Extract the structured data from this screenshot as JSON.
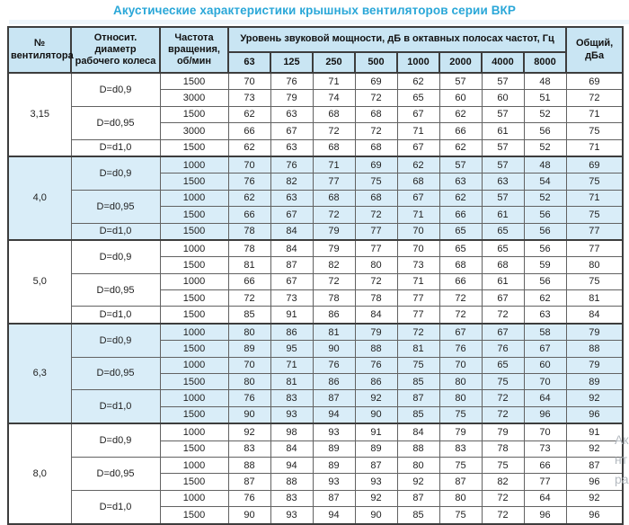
{
  "title": "Акустические характеристики крышных вентиляторов серии ВКР",
  "table": {
    "headers": {
      "fan_number": "№ вентилятора",
      "rel_diameter": "Относит. диаметр рабочего колеса",
      "rotation": "Частота вращения, об/мин",
      "spl_group": "Уровень звуковой мощности, дБ в октавных полосах частот, Гц",
      "frequencies": [
        "63",
        "125",
        "250",
        "500",
        "1000",
        "2000",
        "4000",
        "8000"
      ],
      "total": "Общий, дБа"
    },
    "groups": [
      {
        "fan": "3,15",
        "shaded": false,
        "subgroups": [
          {
            "diameter": "D=d0,9",
            "rows": [
              {
                "rpm": "1500",
                "values": [
                  70,
                  76,
                  71,
                  69,
                  62,
                  57,
                  57,
                  48
                ],
                "total": 69
              },
              {
                "rpm": "3000",
                "values": [
                  73,
                  79,
                  74,
                  72,
                  65,
                  60,
                  60,
                  51
                ],
                "total": 72
              }
            ]
          },
          {
            "diameter": "D=d0,95",
            "rows": [
              {
                "rpm": "1500",
                "values": [
                  62,
                  63,
                  68,
                  68,
                  67,
                  62,
                  57,
                  52
                ],
                "total": 71
              },
              {
                "rpm": "3000",
                "values": [
                  66,
                  67,
                  72,
                  72,
                  71,
                  66,
                  61,
                  56
                ],
                "total": 75
              }
            ]
          },
          {
            "diameter": "D=d1,0",
            "rows": [
              {
                "rpm": "1500",
                "values": [
                  62,
                  63,
                  68,
                  68,
                  67,
                  62,
                  57,
                  52
                ],
                "total": 71
              }
            ]
          }
        ]
      },
      {
        "fan": "4,0",
        "shaded": true,
        "subgroups": [
          {
            "diameter": "D=d0,9",
            "rows": [
              {
                "rpm": "1000",
                "values": [
                  70,
                  76,
                  71,
                  69,
                  62,
                  57,
                  57,
                  48
                ],
                "total": 69
              },
              {
                "rpm": "1500",
                "values": [
                  76,
                  82,
                  77,
                  75,
                  68,
                  63,
                  63,
                  54
                ],
                "total": 75
              }
            ]
          },
          {
            "diameter": "D=d0,95",
            "rows": [
              {
                "rpm": "1000",
                "values": [
                  62,
                  63,
                  68,
                  68,
                  67,
                  62,
                  57,
                  52
                ],
                "total": 71
              },
              {
                "rpm": "1500",
                "values": [
                  66,
                  67,
                  72,
                  72,
                  71,
                  66,
                  61,
                  56
                ],
                "total": 75
              }
            ]
          },
          {
            "diameter": "D=d1,0",
            "rows": [
              {
                "rpm": "1500",
                "values": [
                  78,
                  84,
                  79,
                  77,
                  70,
                  65,
                  65,
                  56
                ],
                "total": 77
              }
            ]
          }
        ]
      },
      {
        "fan": "5,0",
        "shaded": false,
        "subgroups": [
          {
            "diameter": "D=d0,9",
            "rows": [
              {
                "rpm": "1000",
                "values": [
                  78,
                  84,
                  79,
                  77,
                  70,
                  65,
                  65,
                  56
                ],
                "total": 77
              },
              {
                "rpm": "1500",
                "values": [
                  81,
                  87,
                  82,
                  80,
                  73,
                  68,
                  68,
                  59
                ],
                "total": 80
              }
            ]
          },
          {
            "diameter": "D=d0,95",
            "rows": [
              {
                "rpm": "1000",
                "values": [
                  66,
                  67,
                  72,
                  72,
                  71,
                  66,
                  61,
                  56
                ],
                "total": 75
              },
              {
                "rpm": "1500",
                "values": [
                  72,
                  73,
                  78,
                  78,
                  77,
                  72,
                  67,
                  62
                ],
                "total": 81
              }
            ]
          },
          {
            "diameter": "D=d1,0",
            "rows": [
              {
                "rpm": "1500",
                "values": [
                  85,
                  91,
                  86,
                  84,
                  77,
                  72,
                  72,
                  63
                ],
                "total": 84
              }
            ]
          }
        ]
      },
      {
        "fan": "6,3",
        "shaded": true,
        "subgroups": [
          {
            "diameter": "D=d0,9",
            "rows": [
              {
                "rpm": "1000",
                "values": [
                  80,
                  86,
                  81,
                  79,
                  72,
                  67,
                  67,
                  58
                ],
                "total": 79
              },
              {
                "rpm": "1500",
                "values": [
                  89,
                  95,
                  90,
                  88,
                  81,
                  76,
                  76,
                  67
                ],
                "total": 88
              }
            ]
          },
          {
            "diameter": "D=d0,95",
            "rows": [
              {
                "rpm": "1000",
                "values": [
                  70,
                  71,
                  76,
                  76,
                  75,
                  70,
                  65,
                  60
                ],
                "total": 79
              },
              {
                "rpm": "1500",
                "values": [
                  80,
                  81,
                  86,
                  86,
                  85,
                  80,
                  75,
                  70
                ],
                "total": 89
              }
            ]
          },
          {
            "diameter": "D=d1,0",
            "rows": [
              {
                "rpm": "1000",
                "values": [
                  76,
                  83,
                  87,
                  92,
                  87,
                  80,
                  72,
                  64
                ],
                "total": 92
              },
              {
                "rpm": "1500",
                "values": [
                  90,
                  93,
                  94,
                  90,
                  85,
                  75,
                  72,
                  96
                ],
                "total": 96
              }
            ]
          }
        ]
      },
      {
        "fan": "8,0",
        "shaded": false,
        "subgroups": [
          {
            "diameter": "D=d0,9",
            "rows": [
              {
                "rpm": "1000",
                "values": [
                  92,
                  98,
                  93,
                  91,
                  84,
                  79,
                  79,
                  70
                ],
                "total": 91
              },
              {
                "rpm": "1500",
                "values": [
                  83,
                  84,
                  89,
                  89,
                  88,
                  83,
                  78,
                  73
                ],
                "total": 92
              }
            ]
          },
          {
            "diameter": "D=d0,95",
            "rows": [
              {
                "rpm": "1000",
                "values": [
                  88,
                  94,
                  89,
                  87,
                  80,
                  75,
                  75,
                  66
                ],
                "total": 87
              },
              {
                "rpm": "1500",
                "values": [
                  87,
                  88,
                  93,
                  93,
                  92,
                  87,
                  82,
                  77
                ],
                "total": 96
              }
            ]
          },
          {
            "diameter": "D=d1,0",
            "rows": [
              {
                "rpm": "1000",
                "values": [
                  76,
                  83,
                  87,
                  92,
                  87,
                  80,
                  72,
                  64
                ],
                "total": 92
              },
              {
                "rpm": "1500",
                "values": [
                  90,
                  93,
                  94,
                  90,
                  85,
                  75,
                  72,
                  96
                ],
                "total": 96
              }
            ]
          }
        ]
      }
    ]
  },
  "watermark": {
    "lines": [
      "Ак",
      "нт",
      "ра"
    ]
  },
  "colors": {
    "title_accent": "#2aa7d8",
    "header_bg": "#c9e5f3",
    "shaded_row_bg": "#d9edf8",
    "border_dark": "#3d3d3d",
    "border_light": "#626262"
  }
}
